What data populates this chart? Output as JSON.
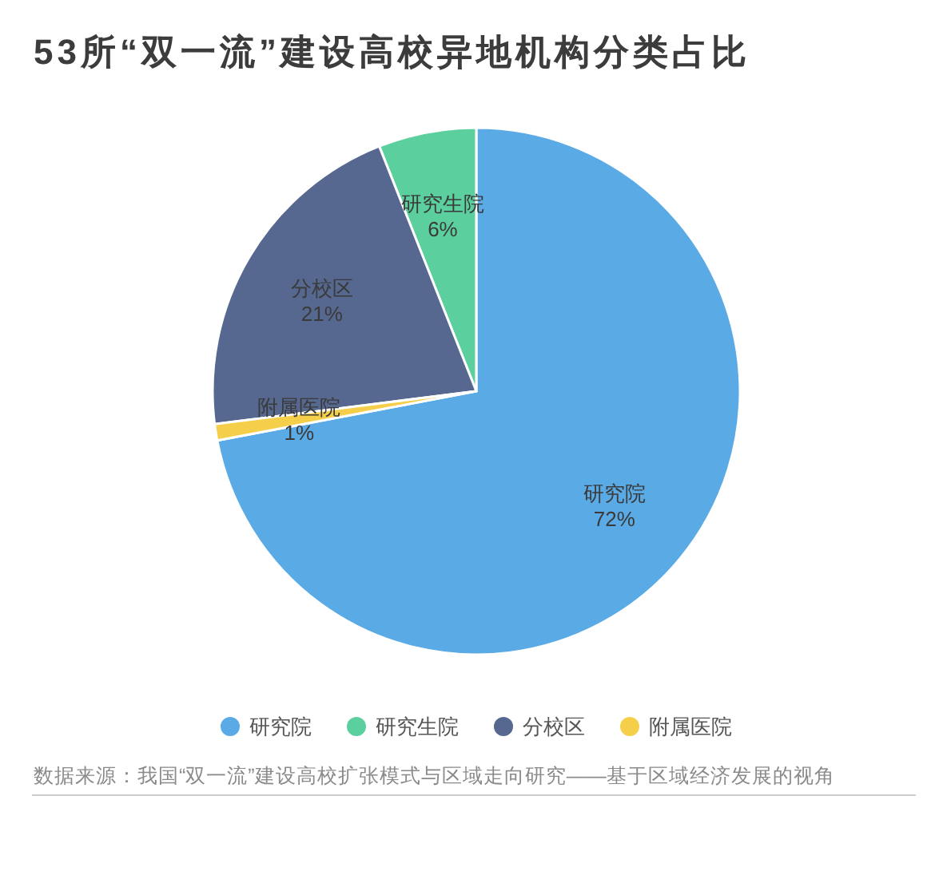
{
  "chart_data": {
    "type": "pie",
    "title": "53所“双一流”建设高校异地机构分类占比",
    "categories": [
      "研究院",
      "研究生院",
      "分校区",
      "附属医院"
    ],
    "values": [
      72,
      6,
      21,
      1
    ],
    "value_labels": [
      "72%",
      "6%",
      "21%",
      "1%"
    ],
    "colors": [
      "#5aaae6",
      "#5ccf9f",
      "#56688f",
      "#f6cf4a"
    ],
    "legend": "bottom",
    "annotations": [
      "数据来源：我国“双一流”建设高校扩张模式与区域走向研究——基于区域经济发展的视角"
    ]
  }
}
